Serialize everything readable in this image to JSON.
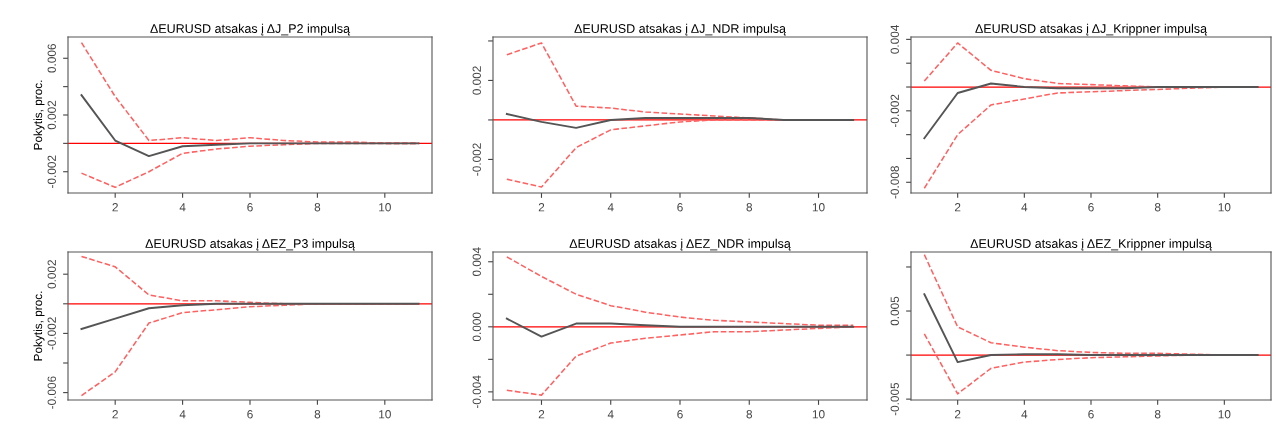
{
  "chart_data": [
    {
      "type": "line",
      "title": "ΔEURUSD atsakas į ΔJ_P2 impulsą",
      "ylabel": "Pokytis, proc.",
      "x": [
        1,
        2,
        3,
        4,
        5,
        6,
        7,
        8,
        9,
        10,
        11
      ],
      "xlim": [
        0.6,
        11.4
      ],
      "xticks": [
        2,
        4,
        6,
        8,
        10
      ],
      "ylim": [
        -0.0035,
        0.0075
      ],
      "yticks": [
        -0.002,
        {
          "value": 0,
          "label": null
        },
        0.002,
        {
          "value": 0.004,
          "label": null
        },
        0.006
      ],
      "grid": false,
      "series": [
        {
          "color": "#555555",
          "line_style": "solid",
          "values": [
            0.0034,
            0.0002,
            -0.0009,
            -0.0002,
            -0.0001,
            0,
            0,
            0,
            0,
            0,
            0
          ]
        },
        {
          "color": "#ff6060",
          "line_style": "dashed",
          "values": [
            0.0071,
            0.0033,
            0.0002,
            0.0004,
            0.0002,
            0.0004,
            0.0002,
            0.0001,
            0.0001,
            0,
            0
          ]
        },
        {
          "color": "#ff6060",
          "line_style": "dashed",
          "values": [
            -0.0021,
            -0.0031,
            -0.002,
            -0.0007,
            -0.0004,
            -0.0002,
            -0.0001,
            0,
            0,
            0,
            0
          ]
        }
      ],
      "ref_lines": [
        {
          "axis": "y",
          "value": 0,
          "color": "#ff0000"
        }
      ]
    },
    {
      "type": "line",
      "title": "ΔEURUSD atsakas į ΔJ_NDR impulsą",
      "x": [
        1,
        2,
        3,
        4,
        5,
        6,
        7,
        8,
        9,
        10,
        11
      ],
      "xlim": [
        0.6,
        11.4
      ],
      "xticks": [
        2,
        4,
        6,
        8,
        10
      ],
      "ylim": [
        -0.0037,
        0.0042
      ],
      "yticks": [
        -0.002,
        {
          "value": 0,
          "label": null
        },
        0.002,
        {
          "value": 0.004,
          "label": null
        }
      ],
      "grid": false,
      "series": [
        {
          "color": "#555555",
          "line_style": "solid",
          "values": [
            0.0003,
            -0.0001,
            -0.0004,
            0,
            0.0001,
            0.0001,
            0.0001,
            0.0001,
            0,
            0,
            0
          ]
        },
        {
          "color": "#ff6060",
          "line_style": "dashed",
          "values": [
            0.0033,
            0.0039,
            0.0007,
            0.0006,
            0.0004,
            0.0003,
            0.0002,
            0.0001,
            0,
            0,
            0
          ]
        },
        {
          "color": "#ff6060",
          "line_style": "dashed",
          "values": [
            -0.003,
            -0.0034,
            -0.0014,
            -0.0005,
            -0.0003,
            -0.0001,
            0,
            0,
            0,
            0,
            0
          ]
        }
      ],
      "ref_lines": [
        {
          "axis": "y",
          "value": 0,
          "color": "#ff0000"
        }
      ]
    },
    {
      "type": "line",
      "title": "ΔEURUSD atsakas į ΔJ_Krippner impulsą",
      "x": [
        1,
        2,
        3,
        4,
        5,
        6,
        7,
        8,
        9,
        10,
        11
      ],
      "xlim": [
        0.6,
        11.4
      ],
      "xticks": [
        2,
        4,
        6,
        8,
        10
      ],
      "ylim": [
        -0.0089,
        0.0042
      ],
      "yticks": [
        -0.008,
        {
          "value": -0.006,
          "label": null
        },
        {
          "value": -0.004,
          "label": null
        },
        -0.002,
        {
          "value": 0,
          "label": null
        },
        {
          "value": 0.002,
          "label": null
        },
        0.004
      ],
      "grid": false,
      "series": [
        {
          "color": "#555555",
          "line_style": "solid",
          "values": [
            -0.0043,
            -0.0005,
            0.0003,
            0,
            -0.0001,
            -0.0001,
            -0.0001,
            0,
            0,
            0,
            0
          ]
        },
        {
          "color": "#ff6060",
          "line_style": "dashed",
          "values": [
            0.0005,
            0.0037,
            0.0014,
            0.0007,
            0.0003,
            0.0002,
            0.0001,
            0,
            0,
            0,
            0
          ]
        },
        {
          "color": "#ff6060",
          "line_style": "dashed",
          "values": [
            -0.0085,
            -0.004,
            -0.0015,
            -0.001,
            -0.0005,
            -0.0004,
            -0.0003,
            -0.0002,
            -0.0001,
            0,
            0
          ]
        }
      ],
      "ref_lines": [
        {
          "axis": "y",
          "value": 0,
          "color": "#ff0000"
        }
      ]
    },
    {
      "type": "line",
      "title": "ΔEURUSD atsakas į ΔEZ_P3 impulsą",
      "ylabel": "Pokytis, proc.",
      "x": [
        1,
        2,
        3,
        4,
        5,
        6,
        7,
        8,
        9,
        10,
        11
      ],
      "xlim": [
        0.6,
        11.4
      ],
      "xticks": [
        2,
        4,
        6,
        8,
        10
      ],
      "ylim": [
        -0.0065,
        0.0035
      ],
      "yticks": [
        -0.006,
        {
          "value": -0.004,
          "label": null
        },
        -0.002,
        {
          "value": 0,
          "label": null
        },
        0.002
      ],
      "grid": false,
      "series": [
        {
          "color": "#555555",
          "line_style": "solid",
          "values": [
            -0.0017,
            -0.001,
            -0.0003,
            -0.0001,
            0,
            0,
            0,
            0,
            0,
            0,
            0
          ]
        },
        {
          "color": "#ff6060",
          "line_style": "dashed",
          "values": [
            0.0032,
            0.0025,
            0.0006,
            0.0002,
            0.0002,
            0.0001,
            0,
            0,
            0,
            0,
            0
          ]
        },
        {
          "color": "#ff6060",
          "line_style": "dashed",
          "values": [
            -0.0062,
            -0.0046,
            -0.0013,
            -0.0006,
            -0.0004,
            -0.0002,
            -0.0001,
            0,
            0,
            0,
            0
          ]
        }
      ],
      "ref_lines": [
        {
          "axis": "y",
          "value": 0,
          "color": "#ff0000"
        }
      ]
    },
    {
      "type": "line",
      "title": "ΔEURUSD atsakas į ΔEZ_NDR impulsą",
      "x": [
        1,
        2,
        3,
        4,
        5,
        6,
        7,
        8,
        9,
        10,
        11
      ],
      "xlim": [
        0.6,
        11.4
      ],
      "xticks": [
        2,
        4,
        6,
        8,
        10
      ],
      "ylim": [
        -0.0045,
        0.0046
      ],
      "yticks": [
        {
          "value": -0.004,
          "label": "-0.004"
        },
        {
          "value": -0.002,
          "label": null
        },
        {
          "value": 0,
          "label": "0.000"
        },
        {
          "value": 0.002,
          "label": null
        },
        {
          "value": 0.004,
          "label": "0.004"
        }
      ],
      "grid": false,
      "series": [
        {
          "color": "#555555",
          "line_style": "solid",
          "values": [
            0.0005,
            -0.0006,
            0.0002,
            0.0002,
            0.0001,
            0,
            0,
            0,
            0,
            0,
            0
          ]
        },
        {
          "color": "#ff6060",
          "line_style": "dashed",
          "values": [
            0.0043,
            0.0031,
            0.002,
            0.0013,
            0.0009,
            0.0006,
            0.0004,
            0.0003,
            0.0002,
            0.0001,
            0.0001
          ]
        },
        {
          "color": "#ff6060",
          "line_style": "dashed",
          "values": [
            -0.0039,
            -0.0042,
            -0.0018,
            -0.001,
            -0.0007,
            -0.0005,
            -0.0003,
            -0.0003,
            -0.0002,
            -0.0001,
            0
          ]
        }
      ],
      "ref_lines": [
        {
          "axis": "y",
          "value": 0,
          "color": "#ff0000"
        }
      ]
    },
    {
      "type": "line",
      "title": "ΔEURUSD atsakas į ΔEZ_Krippner impulsą",
      "x": [
        1,
        2,
        3,
        4,
        5,
        6,
        7,
        8,
        9,
        10,
        11
      ],
      "xlim": [
        0.6,
        11.4
      ],
      "xticks": [
        2,
        4,
        6,
        8,
        10
      ],
      "ylim": [
        -0.0051,
        0.0117
      ],
      "yticks": [
        -0.005,
        {
          "value": 0,
          "label": null
        },
        0.005,
        {
          "value": 0.01,
          "label": null
        }
      ],
      "grid": false,
      "series": [
        {
          "color": "#555555",
          "line_style": "solid",
          "values": [
            0.0069,
            -0.0008,
            0,
            0.0001,
            0.0001,
            0,
            0,
            0,
            0,
            0,
            0
          ]
        },
        {
          "color": "#ff6060",
          "line_style": "dashed",
          "values": [
            0.0114,
            0.0032,
            0.0014,
            0.0009,
            0.0005,
            0.0003,
            0.0002,
            0.0002,
            0.0001,
            0,
            0
          ]
        },
        {
          "color": "#ff6060",
          "line_style": "dashed",
          "values": [
            0.0024,
            -0.0044,
            -0.0015,
            -0.0008,
            -0.0005,
            -0.0003,
            -0.0002,
            -0.0001,
            0,
            0,
            0
          ]
        }
      ],
      "ref_lines": [
        {
          "axis": "y",
          "value": 0,
          "color": "#ff0000"
        }
      ]
    }
  ]
}
